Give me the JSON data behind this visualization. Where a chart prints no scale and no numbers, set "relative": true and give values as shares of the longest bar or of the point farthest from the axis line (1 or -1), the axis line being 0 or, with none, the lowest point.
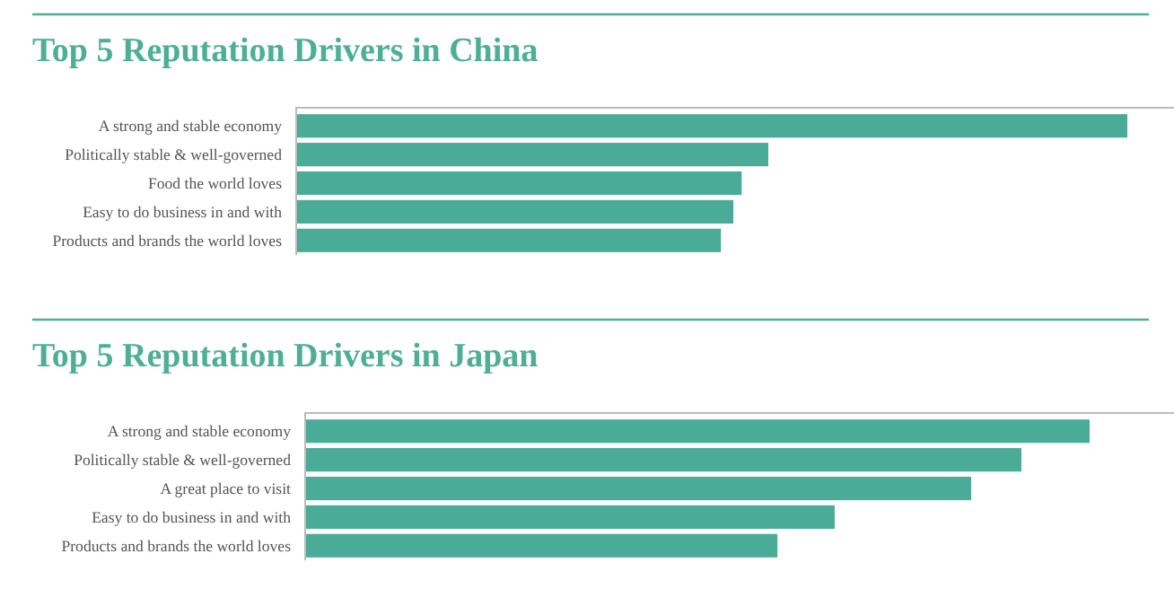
{
  "chart_data": [
    {
      "type": "bar",
      "orientation": "horizontal",
      "relative": true,
      "title": "Top 5 Reputation Drivers in China",
      "categories": [
        "A strong and stable economy",
        "Politically stable & well-governed",
        "Food the world loves",
        "Easy to do business in and with",
        "Products and brands the world loves"
      ],
      "values": [
        1,
        0.568,
        0.536,
        0.526,
        0.511
      ],
      "color": "#4aab96"
    },
    {
      "type": "bar",
      "orientation": "horizontal",
      "relative": true,
      "title": "Top 5 Reputation Drivers in Japan",
      "categories": [
        "A strong and stable economy",
        "Politically stable & well-governed",
        "A great place to visit",
        "Easy to do business in and with",
        "Products and brands the world loves"
      ],
      "values": [
        1,
        0.913,
        0.849,
        0.675,
        0.602
      ],
      "color": "#4aab96"
    }
  ]
}
